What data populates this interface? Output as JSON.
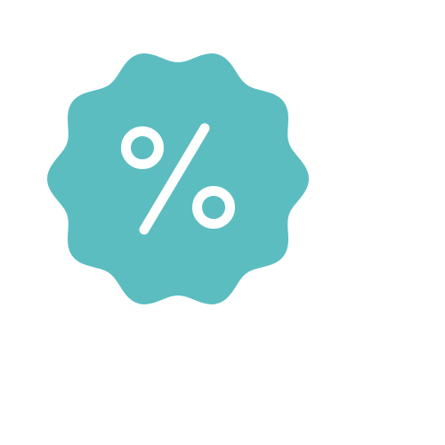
{
  "icon": {
    "name": "discount-badge-icon",
    "badge_color": "#5BBDC0",
    "glyph_color": "#FFFFFF"
  }
}
